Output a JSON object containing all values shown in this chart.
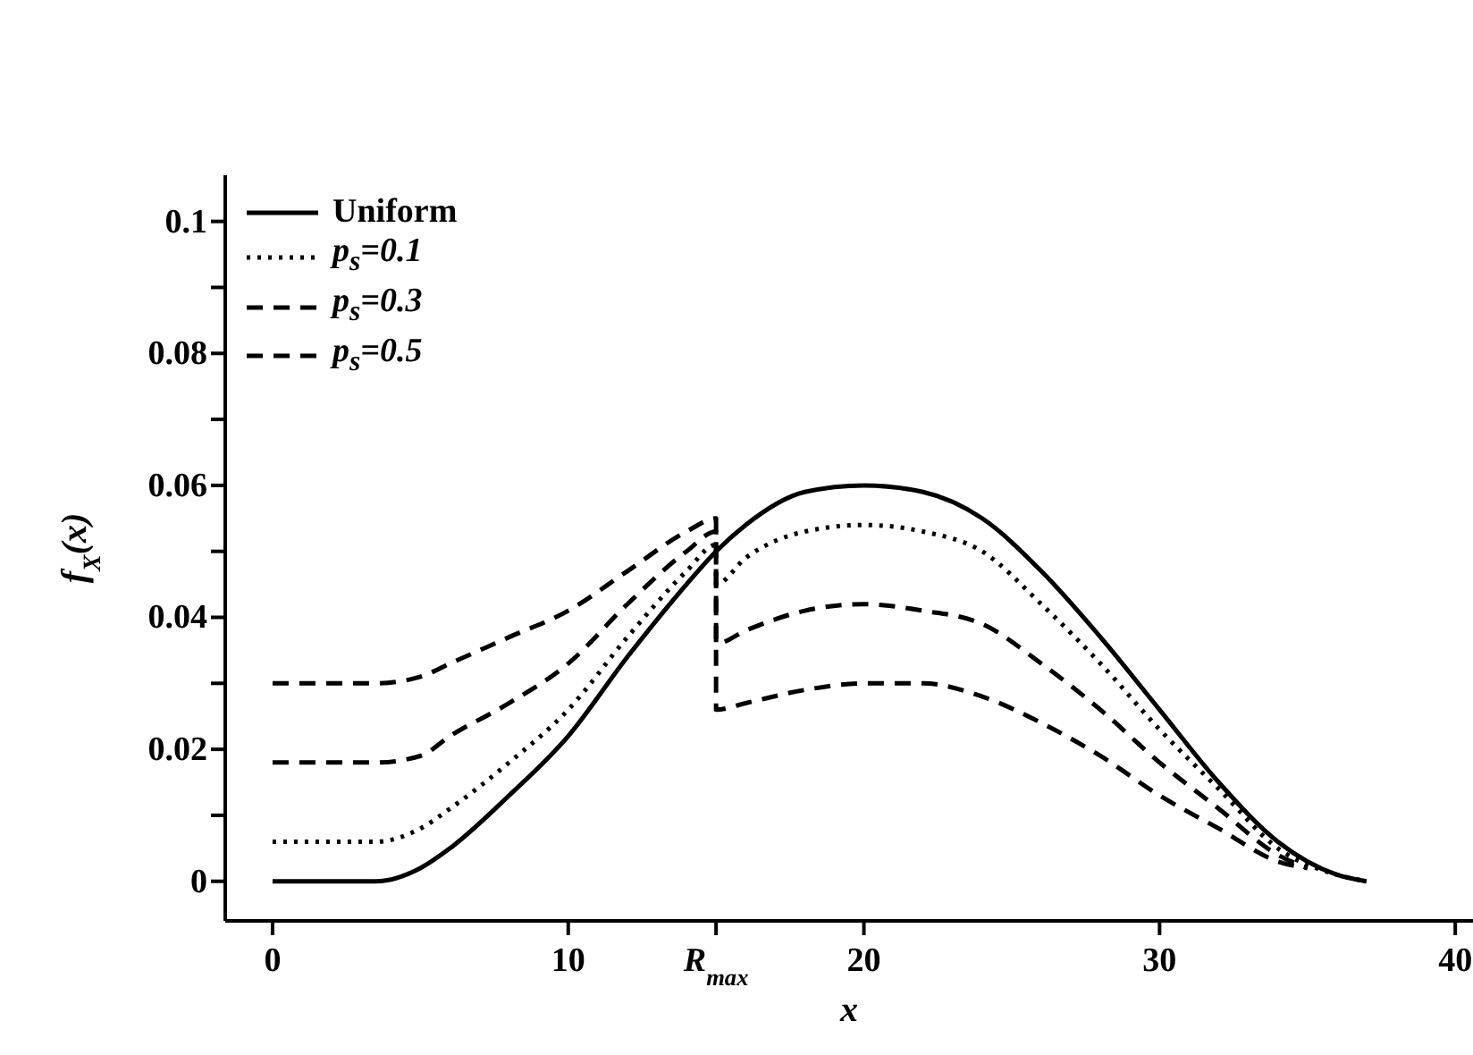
{
  "chart_data": {
    "type": "line",
    "xlabel": "x",
    "ylabel": "f$_{X}$(x)",
    "xlim": [
      -1.6,
      40.6
    ],
    "ylim": [
      -0.006,
      0.107
    ],
    "xticks": [
      0,
      10,
      {
        "value": 15,
        "label": "R$_{max}$"
      },
      20,
      30,
      40
    ],
    "yticks": [
      0,
      {
        "value": 0.01,
        "label": null
      },
      0.02,
      {
        "value": 0.03,
        "label": null
      },
      0.04,
      {
        "value": 0.05,
        "label": null
      },
      0.06,
      {
        "value": 0.07,
        "label": null
      },
      0.08,
      {
        "value": 0.09,
        "label": null
      },
      0.1
    ],
    "grid": false,
    "legend": "top left",
    "marker": "none",
    "series": [
      {
        "name": "Uniform",
        "color": "#000000",
        "line_style": "solid",
        "x": [
          0,
          2,
          3.5,
          5,
          6,
          8,
          10,
          12,
          14,
          15,
          16,
          18,
          20,
          22,
          24,
          26,
          28,
          30,
          32,
          34,
          36,
          37
        ],
        "values": [
          0,
          0,
          0,
          0.002,
          0.005,
          0.013,
          0.022,
          0.034,
          0.045,
          0.05,
          0.054,
          0.059,
          0.06,
          0.059,
          0.055,
          0.047,
          0.037,
          0.026,
          0.015,
          0.006,
          0.001,
          0
        ]
      },
      {
        "name": "p$_{s}$=0.1",
        "color": "#000000",
        "line_style": "dotted",
        "x": [
          0,
          2,
          3.5,
          5,
          6,
          8,
          10,
          12,
          14,
          15,
          15,
          16,
          18,
          20,
          22,
          24,
          26,
          28,
          30,
          32,
          34,
          36,
          37
        ],
        "values": [
          0.006,
          0.006,
          0.006,
          0.008,
          0.011,
          0.018,
          0.026,
          0.037,
          0.047,
          0.051,
          0.045,
          0.049,
          0.053,
          0.054,
          0.053,
          0.05,
          0.042,
          0.033,
          0.023,
          0.014,
          0.005,
          0.001,
          0
        ]
      },
      {
        "name": "p$_{s}$=0.3",
        "color": "#000000",
        "line_style": "dashed",
        "x": [
          0,
          2,
          3.5,
          5,
          6,
          8,
          10,
          12,
          14,
          15,
          15,
          16,
          18,
          20,
          22,
          24,
          26,
          28,
          30,
          32,
          34,
          35
        ],
        "values": [
          0.018,
          0.018,
          0.018,
          0.019,
          0.022,
          0.027,
          0.033,
          0.042,
          0.05,
          0.053,
          0.036,
          0.038,
          0.041,
          0.042,
          0.041,
          0.039,
          0.033,
          0.026,
          0.018,
          0.011,
          0.004,
          0.002
        ]
      },
      {
        "name": "p$_{s}$=0.5",
        "color": "#000000",
        "line_style": "dashed",
        "x": [
          0,
          2,
          3.5,
          5,
          6,
          8,
          10,
          12,
          14,
          15,
          15,
          16,
          18,
          20,
          22,
          24,
          26,
          28,
          30,
          32,
          34,
          35
        ],
        "values": [
          0.03,
          0.03,
          0.03,
          0.031,
          0.033,
          0.037,
          0.041,
          0.047,
          0.053,
          0.055,
          0.026,
          0.027,
          0.029,
          0.03,
          0.03,
          0.028,
          0.024,
          0.019,
          0.013,
          0.008,
          0.003,
          0.002
        ]
      }
    ]
  }
}
